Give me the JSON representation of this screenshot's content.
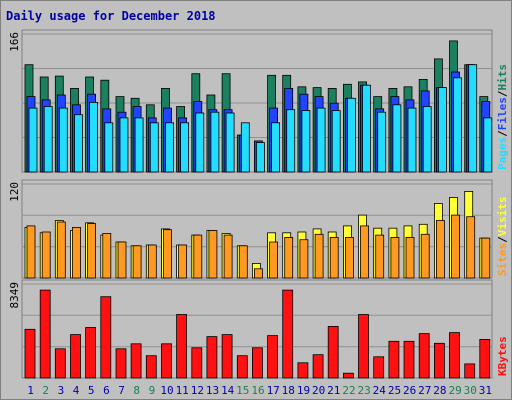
{
  "title": "Daily usage for December 2018",
  "colors": {
    "background": "#c0c0c0",
    "frame": "#808080",
    "title": "#0000aa",
    "hits": "#1a8060",
    "files": "#2244ff",
    "pages": "#22ddff",
    "visits": "#ffff33",
    "sites": "#ff9922",
    "kbytes": "#ff1111",
    "weekend_day": "#1a8050",
    "weekday": "#0000aa"
  },
  "chart_data": [
    {
      "type": "bar",
      "panel": "top",
      "ymax_label": "166",
      "ymax": 166,
      "legend": [
        "Pages",
        "Files",
        "Hits"
      ],
      "categories": [
        "1",
        "2",
        "3",
        "4",
        "5",
        "6",
        "7",
        "8",
        "9",
        "10",
        "11",
        "12",
        "13",
        "14",
        "15",
        "16",
        "17",
        "18",
        "19",
        "20",
        "21",
        "22",
        "23",
        "24",
        "25",
        "26",
        "27",
        "28",
        "29",
        "30",
        "31"
      ],
      "series": [
        {
          "name": "Hits",
          "values": [
            131,
            116,
            117,
            102,
            116,
            112,
            92,
            90,
            82,
            102,
            80,
            120,
            94,
            120,
            45,
            0,
            118,
            118,
            104,
            103,
            102,
            107,
            110,
            92,
            102,
            104,
            113,
            138,
            160,
            131,
            92
          ]
        },
        {
          "name": "Files",
          "values": [
            92,
            88,
            94,
            82,
            95,
            77,
            73,
            80,
            66,
            78,
            66,
            86,
            76,
            76,
            45,
            38,
            78,
            102,
            95,
            92,
            84,
            90,
            106,
            77,
            92,
            88,
            99,
            103,
            122,
            131,
            86
          ]
        },
        {
          "name": "Pages",
          "values": [
            78,
            80,
            78,
            70,
            85,
            60,
            66,
            66,
            60,
            60,
            60,
            72,
            73,
            72,
            60,
            36,
            60,
            76,
            75,
            78,
            75,
            90,
            106,
            73,
            82,
            78,
            80,
            103,
            115,
            131,
            66
          ]
        }
      ]
    },
    {
      "type": "bar",
      "panel": "middle",
      "ymax_label": "120",
      "ymax": 120,
      "legend": [
        "Sites",
        "Visits"
      ],
      "categories": [
        "1",
        "2",
        "3",
        "4",
        "5",
        "6",
        "7",
        "8",
        "9",
        "10",
        "11",
        "12",
        "13",
        "14",
        "15",
        "16",
        "17",
        "18",
        "19",
        "20",
        "21",
        "22",
        "23",
        "24",
        "25",
        "26",
        "27",
        "28",
        "29",
        "30",
        "31"
      ],
      "series": [
        {
          "name": "Visits",
          "values": [
            66,
            59,
            75,
            62,
            72,
            56,
            47,
            42,
            43,
            64,
            43,
            56,
            62,
            58,
            42,
            19,
            59,
            59,
            60,
            64,
            60,
            68,
            82,
            65,
            65,
            68,
            70,
            97,
            105,
            113,
            52
          ]
        },
        {
          "name": "Sites",
          "values": [
            68,
            60,
            73,
            66,
            71,
            58,
            47,
            42,
            43,
            63,
            43,
            56,
            62,
            56,
            42,
            12,
            47,
            53,
            50,
            57,
            53,
            53,
            68,
            56,
            53,
            53,
            57,
            75,
            82,
            80,
            52
          ]
        }
      ]
    },
    {
      "type": "bar",
      "panel": "bottom",
      "ymax_label": "8349",
      "ymax": 8349,
      "legend": [
        "KBytes"
      ],
      "categories": [
        "1",
        "2",
        "3",
        "4",
        "5",
        "6",
        "7",
        "8",
        "9",
        "10",
        "11",
        "12",
        "13",
        "14",
        "15",
        "16",
        "17",
        "18",
        "19",
        "20",
        "21",
        "22",
        "23",
        "24",
        "25",
        "26",
        "27",
        "28",
        "29",
        "30",
        "31"
      ],
      "series": [
        {
          "name": "KBytes",
          "values": [
            4420,
            7980,
            2650,
            3940,
            4580,
            7380,
            2650,
            3100,
            2020,
            3100,
            5760,
            2740,
            3760,
            3940,
            2020,
            2740,
            3850,
            7980,
            1380,
            2110,
            4680,
            440,
            5760,
            1920,
            3330,
            3330,
            4030,
            3150,
            4120,
            1280,
            3500
          ]
        }
      ]
    }
  ],
  "weekend_days": [
    2,
    8,
    9,
    15,
    16,
    22,
    23,
    29,
    30
  ]
}
